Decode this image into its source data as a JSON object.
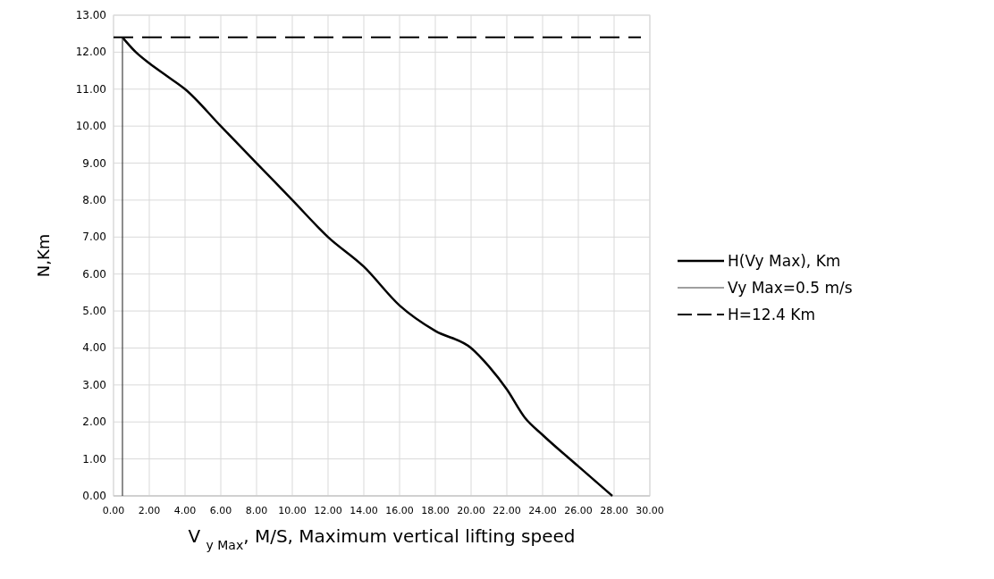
{
  "chart_data": {
    "type": "line",
    "xlabel": "V $_{y Max}$, M/S, Maximum vertical lifting speed",
    "ylabel": "N,Km",
    "xlim": [
      0,
      30
    ],
    "ylim": [
      0,
      13
    ],
    "xticks": [
      {
        "value": 0,
        "label": "0.00"
      },
      {
        "value": 2,
        "label": "2.00"
      },
      {
        "value": 4,
        "label": "4.00"
      },
      {
        "value": 6,
        "label": "6.00"
      },
      {
        "value": 8,
        "label": "8.00"
      },
      {
        "value": 10,
        "label": "10.00"
      },
      {
        "value": 12,
        "label": "12.00"
      },
      {
        "value": 14,
        "label": "14.00"
      },
      {
        "value": 16,
        "label": "16.00"
      },
      {
        "value": 18,
        "label": "18.00"
      },
      {
        "value": 20,
        "label": "20.00"
      },
      {
        "value": 22,
        "label": "22.00"
      },
      {
        "value": 24,
        "label": "24.00"
      },
      {
        "value": 26,
        "label": "26.00"
      },
      {
        "value": 28,
        "label": "28.00"
      },
      {
        "value": 30,
        "label": "30.00"
      }
    ],
    "yticks": [
      {
        "value": 0,
        "label": "0.00"
      },
      {
        "value": 1,
        "label": "1.00"
      },
      {
        "value": 2,
        "label": "2.00"
      },
      {
        "value": 3,
        "label": "3.00"
      },
      {
        "value": 4,
        "label": "4.00"
      },
      {
        "value": 5,
        "label": "5.00"
      },
      {
        "value": 6,
        "label": "6.00"
      },
      {
        "value": 7,
        "label": "7.00"
      },
      {
        "value": 8,
        "label": "8.00"
      },
      {
        "value": 9,
        "label": "9.00"
      },
      {
        "value": 10,
        "label": "10.00"
      },
      {
        "value": 11,
        "label": "11.00"
      },
      {
        "value": 12,
        "label": "12.00"
      },
      {
        "value": 13,
        "label": "13.00"
      }
    ],
    "grid": true,
    "legend": "right",
    "marker": "none",
    "series": [
      {
        "name": "H(Vy Max), Km",
        "color": "#000000",
        "line_style": "solid",
        "x": [
          0.5,
          1.25,
          2,
          3,
          4,
          6,
          8,
          10,
          12,
          14,
          16,
          18,
          20,
          21,
          22,
          23,
          24,
          26,
          27.9
        ],
        "values": [
          12.4,
          12.0,
          11.7,
          11.35,
          11.0,
          10.0,
          9.0,
          8.0,
          7.0,
          6.2,
          5.15,
          4.46,
          4.0,
          3.5,
          2.88,
          2.12,
          1.65,
          0.8,
          0
        ]
      },
      {
        "name": "Vy Max=0.5 m/s",
        "color": "#404040",
        "line_style": "solid",
        "x": [
          0.5,
          0.5
        ],
        "values": [
          0,
          12.4
        ]
      },
      {
        "name": "H=12.4 Km",
        "color": "#000000",
        "line_style": "dashed",
        "x": [
          0,
          29.5
        ],
        "values": [
          12.4,
          12.4
        ]
      }
    ]
  }
}
